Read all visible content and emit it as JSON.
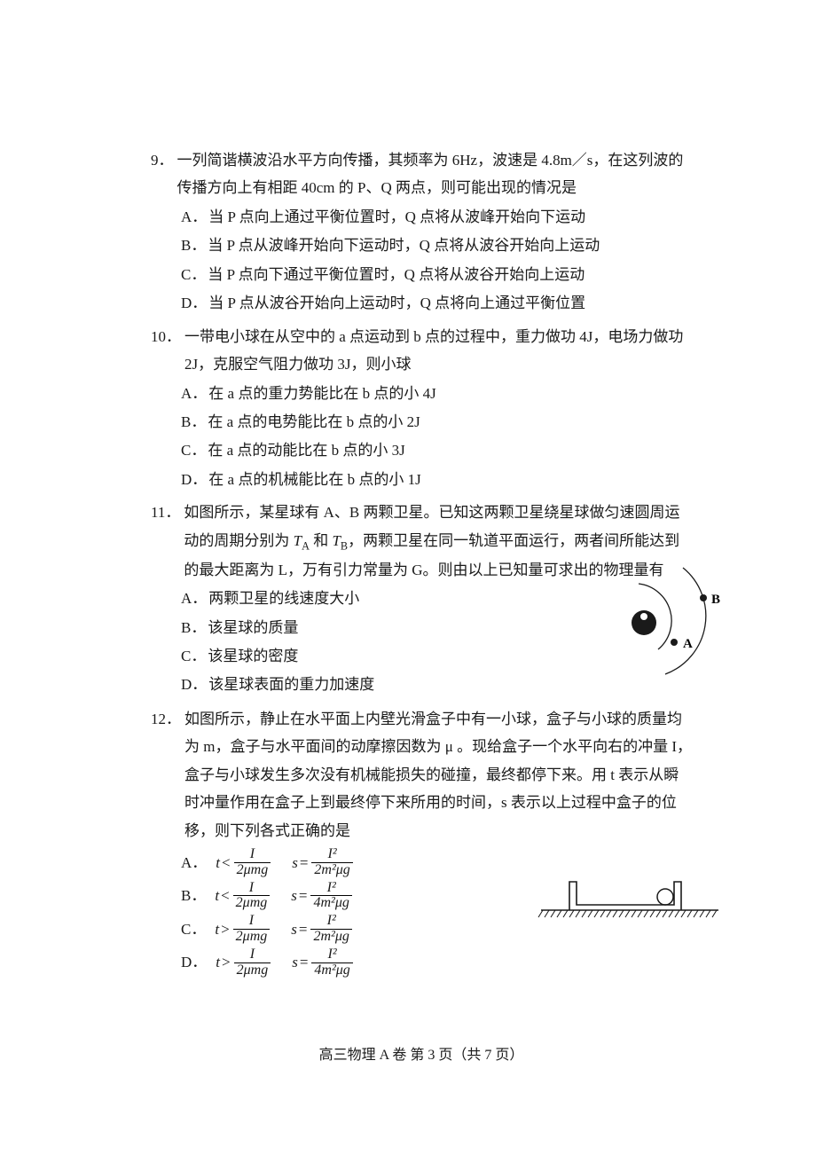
{
  "questions": {
    "q9": {
      "number": "9．",
      "stem": "一列简谐横波沿水平方向传播，其频率为 6Hz，波速是 4.8m／s，在这列波的传播方向上有相距 40cm 的 P、Q 两点，则可能出现的情况是",
      "options": [
        {
          "label": "A．",
          "text": "当 P 点向上通过平衡位置时，Q 点将从波峰开始向下运动"
        },
        {
          "label": "B．",
          "text": "当 P 点从波峰开始向下运动时，Q 点将从波谷开始向上运动"
        },
        {
          "label": "C．",
          "text": "当 P 点向下通过平衡位置时，Q 点将从波谷开始向上运动"
        },
        {
          "label": "D．",
          "text": "当 P 点从波谷开始向上运动时，Q 点将向上通过平衡位置"
        }
      ]
    },
    "q10": {
      "number": "10．",
      "stem": "一带电小球在从空中的 a 点运动到 b 点的过程中，重力做功 4J，电场力做功 2J，克服空气阻力做功 3J，则小球",
      "options": [
        {
          "label": "A．",
          "text": "在 a 点的重力势能比在 b 点的小 4J"
        },
        {
          "label": "B．",
          "text": "在 a 点的电势能比在 b 点的小 2J"
        },
        {
          "label": "C．",
          "text": "在 a 点的动能比在 b 点的小 3J"
        },
        {
          "label": "D．",
          "text": "在 a 点的机械能比在 b 点的小 1J"
        }
      ]
    },
    "q11": {
      "number": "11．",
      "stem_prefix": "如图所示，某星球有 A、B 两颗卫星。已知这两颗卫星绕星球做匀速圆周运动的周期分别为 ",
      "stem_TA": "T",
      "stem_A": "A",
      "stem_and": " 和 ",
      "stem_TB": "T",
      "stem_B": "B",
      "stem_mid": "，两颗卫星在同一轨道平面运行，两者间所能达到的最大距离为 L，万有引力常量为 G。则由以上已知量可求出的物理量有",
      "options": [
        {
          "label": "A．",
          "text": "两颗卫星的线速度大小"
        },
        {
          "label": "B．",
          "text": "该星球的质量"
        },
        {
          "label": "C．",
          "text": "该星球的密度"
        },
        {
          "label": "D．",
          "text": "该星球表面的重力加速度"
        }
      ],
      "figure": {
        "label_A": "A",
        "label_B": "B",
        "planet_fill": "#1a1a1a",
        "satellite_fill": "#1a1a1a",
        "orbit_stroke": "#1a1a1a"
      }
    },
    "q12": {
      "number": "12．",
      "stem": "如图所示，静止在水平面上内壁光滑盒子中有一小球，盒子与小球的质量均为 m，盒子与水平面间的动摩擦因数为 μ 。现给盒子一个水平向右的冲量 I，盒子与小球发生多次没有机械能损失的碰撞，最终都停下来。用 t 表示从瞬时冲量作用在盒子上到最终停下来所用的时间，s 表示以上过程中盒子的位移，则下列各式正确的是",
      "math_options": [
        {
          "label": "A．",
          "t_rel": "<",
          "t_num": "I",
          "t_den": "2μmg",
          "s_num": "I²",
          "s_den": "2m²μg"
        },
        {
          "label": "B．",
          "t_rel": "<",
          "t_num": "I",
          "t_den": "2μmg",
          "s_num": "I²",
          "s_den": "4m²μg"
        },
        {
          "label": "C．",
          "t_rel": ">",
          "t_num": "I",
          "t_den": "2μmg",
          "s_num": "I²",
          "s_den": "2m²μg"
        },
        {
          "label": "D．",
          "t_rel": ">",
          "t_num": "I",
          "t_den": "2μmg",
          "s_num": "I²",
          "s_den": "4m²μg"
        }
      ],
      "figure": {
        "stroke": "#1a1a1a",
        "hatch": "#1a1a1a"
      }
    }
  },
  "footer": "高三物理 A 卷 第 3 页（共 7 页）"
}
